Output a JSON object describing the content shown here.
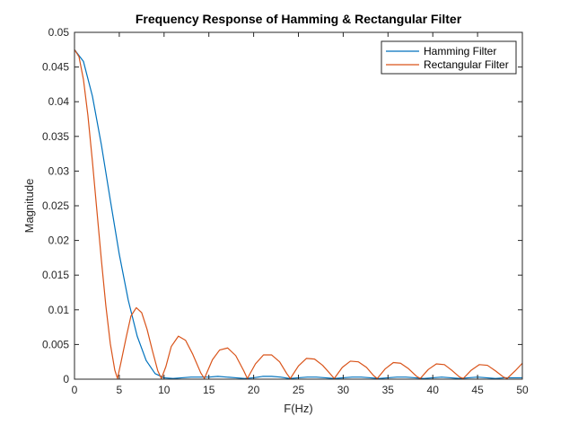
{
  "chart_data": {
    "type": "line",
    "title": "Frequency Response of Hamming & Rectangular Filter",
    "xlabel": "F(Hz)",
    "ylabel": "Magnitude",
    "xlim": [
      0,
      50
    ],
    "ylim": [
      0,
      0.05
    ],
    "xticks": [
      "0",
      "5",
      "10",
      "15",
      "20",
      "25",
      "30",
      "35",
      "40",
      "45",
      "50"
    ],
    "yticks": [
      "0",
      "0.005",
      "0.01",
      "0.015",
      "0.02",
      "0.025",
      "0.03",
      "0.035",
      "0.04",
      "0.045",
      "0.05"
    ],
    "grid": false,
    "legend_position": "top-right",
    "series": [
      {
        "name": "Hamming Filter",
        "color": "#0072BD",
        "x": [
          0,
          1,
          2,
          3,
          4,
          5,
          6,
          7,
          8,
          9,
          10,
          11,
          12,
          13,
          14,
          15,
          16,
          17,
          18,
          19,
          20,
          21,
          22,
          23,
          24,
          25,
          26,
          27,
          28,
          29,
          30,
          31,
          32,
          33,
          34,
          35,
          36,
          37,
          38,
          39,
          40,
          41,
          42,
          43,
          44,
          45,
          46,
          47,
          48,
          49,
          50
        ],
        "values": [
          0.0475,
          0.0458,
          0.0408,
          0.0338,
          0.0258,
          0.018,
          0.0114,
          0.0062,
          0.0027,
          0.0008,
          0.0002,
          0.0001,
          0.0002,
          0.0003,
          0.0003,
          0.0003,
          0.0004,
          0.0003,
          0.0002,
          0.0001,
          0.0002,
          0.0004,
          0.0004,
          0.0003,
          0.0001,
          0.0002,
          0.0003,
          0.0003,
          0.0002,
          0.0001,
          0.0002,
          0.0003,
          0.0003,
          0.0002,
          0.0001,
          0.0002,
          0.0003,
          0.0003,
          0.0002,
          0.0001,
          0.0002,
          0.0003,
          0.0002,
          0.0001,
          0.0002,
          0.0003,
          0.0002,
          0.0001,
          0.0002,
          0.0002,
          0.0002
        ]
      },
      {
        "name": "Rectangular Filter",
        "color": "#D95319",
        "x": [
          0,
          0.5,
          1,
          1.5,
          2,
          2.5,
          3,
          3.5,
          4,
          4.5,
          4.8,
          5.2,
          5.8,
          6.3,
          6.9,
          7.5,
          8.1,
          8.7,
          9.3,
          9.7,
          10.2,
          10.8,
          11.6,
          12.4,
          13.2,
          14.1,
          14.5,
          15.4,
          16.2,
          17.1,
          18,
          18.9,
          19.3,
          20.2,
          21.1,
          22,
          22.9,
          23.7,
          24.1,
          25,
          25.9,
          26.8,
          27.7,
          28.6,
          29,
          29.9,
          30.8,
          31.7,
          32.6,
          33.4,
          33.8,
          34.7,
          35.6,
          36.4,
          37.3,
          38.2,
          38.6,
          39.5,
          40.4,
          41.3,
          42.1,
          43,
          43.4,
          44.3,
          45.2,
          46.1,
          47,
          47.9,
          48.3,
          49.2,
          50
        ],
        "values": [
          0.0475,
          0.0465,
          0.0432,
          0.038,
          0.0314,
          0.0243,
          0.0172,
          0.0106,
          0.0051,
          0.0013,
          0.0001,
          0.0025,
          0.0062,
          0.0091,
          0.0103,
          0.0096,
          0.0072,
          0.0041,
          0.0012,
          0.0001,
          0.0018,
          0.0047,
          0.0062,
          0.0056,
          0.0036,
          0.0009,
          0.0001,
          0.0028,
          0.0042,
          0.0045,
          0.0034,
          0.0012,
          0.0001,
          0.0022,
          0.0035,
          0.0035,
          0.0025,
          0.0008,
          0.0001,
          0.0019,
          0.003,
          0.0029,
          0.002,
          0.0007,
          0.0001,
          0.0017,
          0.0026,
          0.0025,
          0.0017,
          0.0005,
          0.0001,
          0.0015,
          0.0024,
          0.0023,
          0.0015,
          0.0004,
          0.0001,
          0.0014,
          0.0022,
          0.0021,
          0.0013,
          0.0003,
          0.0001,
          0.0013,
          0.0021,
          0.002,
          0.0012,
          0.0003,
          0.0001,
          0.0012,
          0.0023
        ]
      }
    ]
  }
}
